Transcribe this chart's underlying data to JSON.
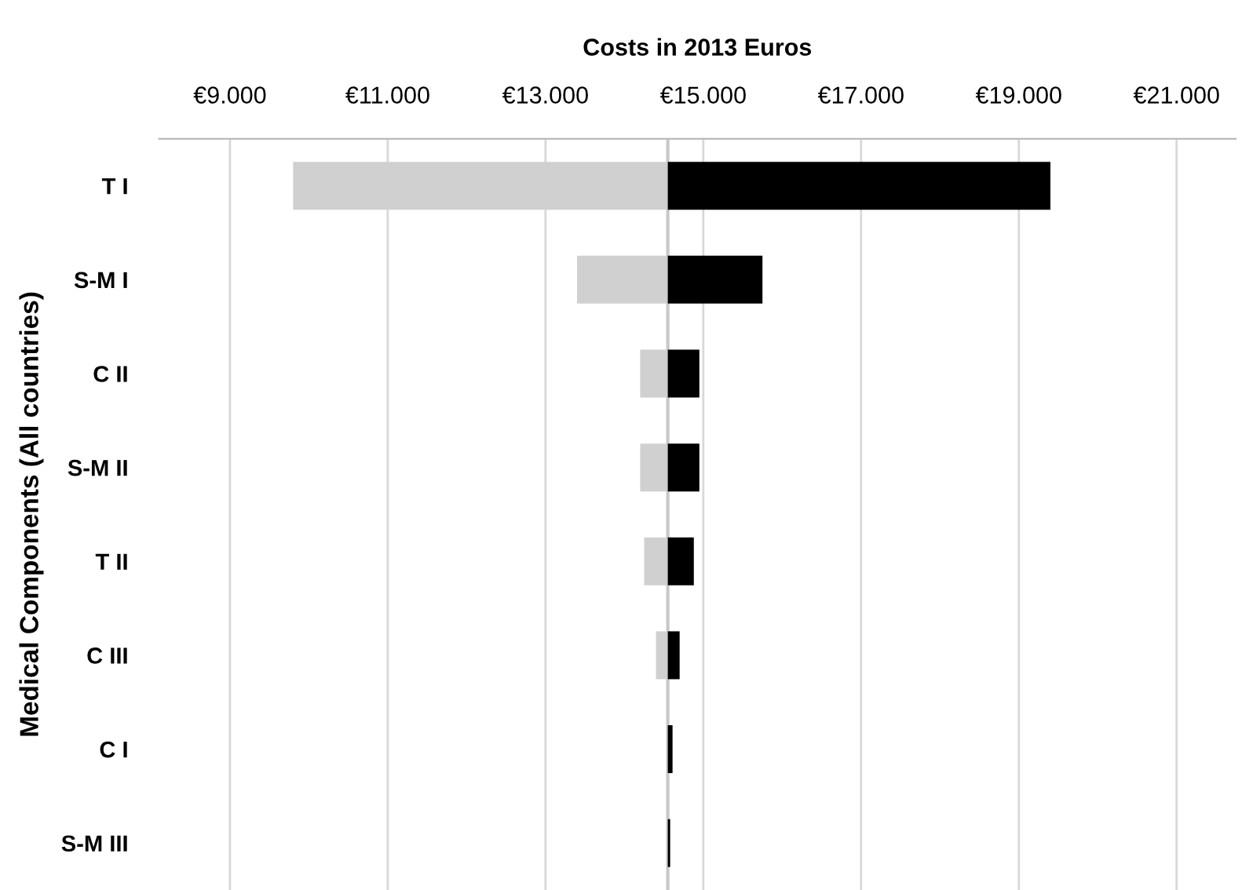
{
  "chart_data": {
    "type": "bar",
    "orientation": "horizontal",
    "xlabel": "Costs in 2013 Euros",
    "ylabel": "Medical Components (All countries)",
    "categories": [
      "T I",
      "S-M I",
      "C II",
      "S-M II",
      "T II",
      "C III",
      "C I",
      "S-M III"
    ],
    "series": [
      {
        "color": "#d0d0d0",
        "base": [
          9800,
          13400,
          14200,
          14200,
          14250,
          14400,
          null,
          null
        ],
        "values": [
          4750,
          1150,
          350,
          350,
          300,
          150,
          null,
          null
        ]
      },
      {
        "color": "#000000",
        "base": [
          14550,
          14550,
          14550,
          14550,
          14550,
          14550,
          14550,
          14550
        ],
        "values": [
          4850,
          1200,
          400,
          400,
          330,
          150,
          60,
          30
        ]
      }
    ],
    "xlim": [
      8100,
      21750
    ],
    "xticks": [
      {
        "value": 9000,
        "label": "€9.000"
      },
      {
        "value": 11000,
        "label": "€11.000"
      },
      {
        "value": 13000,
        "label": "€13.000"
      },
      {
        "value": 15000,
        "label": "€15.000"
      },
      {
        "value": 17000,
        "label": "€17.000"
      },
      {
        "value": 19000,
        "label": "€19.000"
      },
      {
        "value": 21000,
        "label": "€21.000"
      }
    ],
    "ref_lines": [
      {
        "axis": "x",
        "value": 14550,
        "color": "#c8c8c8"
      }
    ],
    "grid": "x",
    "legend": false
  }
}
